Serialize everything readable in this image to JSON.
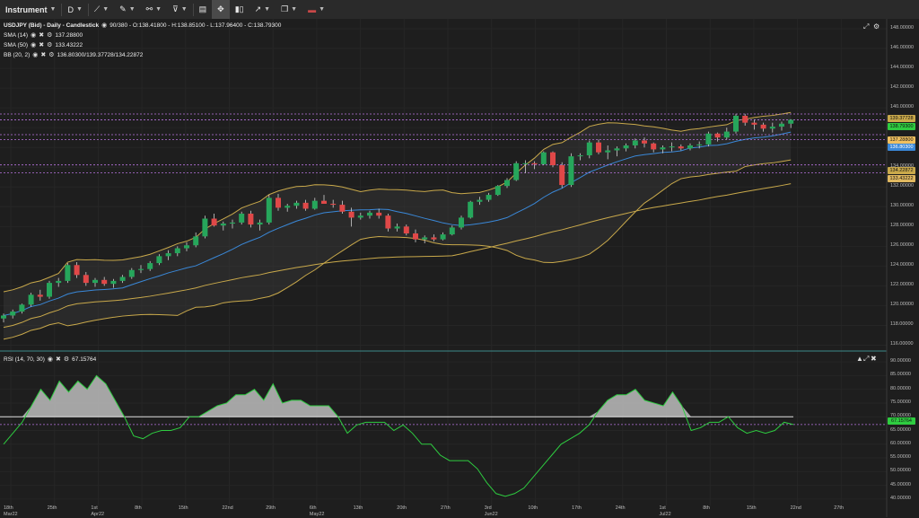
{
  "toolbar": {
    "instrument_label": "Instrument",
    "timeframe_label": "D",
    "items": [
      {
        "name": "drawing-tools-icon"
      },
      {
        "name": "pencil-icon"
      },
      {
        "name": "indicators-icon"
      },
      {
        "name": "template-icon"
      },
      {
        "name": "layout-icon"
      },
      {
        "name": "crosshair-icon"
      },
      {
        "name": "chart-type-icon"
      },
      {
        "name": "share-icon"
      },
      {
        "name": "window-icon"
      },
      {
        "name": "language-flag-icon"
      }
    ]
  },
  "legend": {
    "instrument": "USDJPY (Bid) - Daily - Candlestick",
    "ohlc": "90/380 - O:138.41800 - H:138.85100 - L:137.96400 - C:138.79300",
    "sma14_label": "SMA (14)",
    "sma14_value": "137.28800",
    "sma50_label": "SMA (50)",
    "sma50_value": "133.43222",
    "bb_label": "BB (20, 2)",
    "bb_value": "136.80300/139.37728/134.22872",
    "rsi_label": "RSI (14, 70, 30)",
    "rsi_value": "67.15764"
  },
  "colors": {
    "bg": "#1e1e1e",
    "up": "#26a65b",
    "down": "#e04848",
    "bb": "#c9a94b",
    "sma14": "#f0c060",
    "sma50": "#3a88d8",
    "rsi": "#2ecc40",
    "level": "#b873e0"
  },
  "price_axis": [
    "148.00000",
    "146.00000",
    "144.00000",
    "142.00000",
    "140.00000",
    "138.00000",
    "136.00000",
    "134.00000",
    "132.00000",
    "130.00000",
    "128.00000",
    "126.00000",
    "124.00000",
    "122.00000",
    "120.00000",
    "118.00000",
    "116.00000"
  ],
  "price_tags": {
    "bb_upper": "139.37728",
    "close": "138.79300",
    "sma14": "137.28800",
    "bb_mid": "136.80300",
    "bb_lower": "134.22872",
    "sma50": "133.43222"
  },
  "rsi_axis": [
    "90.00000",
    "85.00000",
    "80.00000",
    "75.00000",
    "70.00000",
    "65.00000",
    "60.00000",
    "55.00000",
    "50.00000",
    "45.00000",
    "40.00000"
  ],
  "rsi_tag": "67.15764",
  "time_axis": [
    {
      "l1": "18th",
      "l2": "Mar22"
    },
    {
      "l1": "25th",
      "l2": ""
    },
    {
      "l1": "1st",
      "l2": "Apr22"
    },
    {
      "l1": "8th",
      "l2": ""
    },
    {
      "l1": "15th",
      "l2": ""
    },
    {
      "l1": "22nd",
      "l2": ""
    },
    {
      "l1": "29th",
      "l2": ""
    },
    {
      "l1": "6th",
      "l2": "May22"
    },
    {
      "l1": "13th",
      "l2": ""
    },
    {
      "l1": "20th",
      "l2": ""
    },
    {
      "l1": "27th",
      "l2": ""
    },
    {
      "l1": "3rd",
      "l2": "Jun22"
    },
    {
      "l1": "10th",
      "l2": ""
    },
    {
      "l1": "17th",
      "l2": ""
    },
    {
      "l1": "24th",
      "l2": ""
    },
    {
      "l1": "1st",
      "l2": "Jul22"
    },
    {
      "l1": "8th",
      "l2": ""
    },
    {
      "l1": "15th",
      "l2": ""
    },
    {
      "l1": "22nd",
      "l2": ""
    },
    {
      "l1": "27th",
      "l2": ""
    }
  ],
  "chart_data": {
    "type": "candlestick",
    "ylim": [
      115.5,
      149
    ],
    "candles": [
      [
        118.7,
        119.2,
        118.3,
        119.0
      ],
      [
        119.0,
        119.6,
        118.7,
        119.4
      ],
      [
        119.4,
        120.2,
        119.2,
        120.1
      ],
      [
        120.1,
        121.3,
        119.9,
        121.1
      ],
      [
        121.1,
        121.6,
        120.5,
        120.9
      ],
      [
        120.9,
        122.5,
        120.7,
        122.3
      ],
      [
        122.3,
        122.8,
        121.9,
        122.5
      ],
      [
        122.5,
        124.3,
        122.3,
        124.1
      ],
      [
        124.1,
        124.4,
        122.8,
        123.1
      ],
      [
        123.1,
        123.4,
        122.0,
        122.3
      ],
      [
        122.3,
        122.8,
        121.9,
        122.6
      ],
      [
        122.6,
        122.9,
        122.0,
        122.2
      ],
      [
        122.2,
        122.7,
        121.8,
        122.5
      ],
      [
        122.5,
        123.1,
        122.3,
        122.9
      ],
      [
        122.9,
        123.8,
        122.7,
        123.6
      ],
      [
        123.6,
        124.1,
        123.3,
        123.7
      ],
      [
        123.7,
        124.5,
        123.5,
        124.3
      ],
      [
        124.3,
        125.2,
        124.1,
        125.0
      ],
      [
        125.0,
        125.6,
        124.6,
        125.3
      ],
      [
        125.3,
        126.0,
        125.0,
        125.8
      ],
      [
        125.8,
        126.4,
        125.5,
        126.1
      ],
      [
        126.1,
        127.4,
        125.9,
        127.0
      ],
      [
        127.0,
        129.1,
        126.8,
        128.8
      ],
      [
        128.8,
        129.3,
        128.0,
        128.1
      ],
      [
        128.1,
        128.5,
        127.6,
        128.3
      ],
      [
        128.3,
        128.7,
        127.8,
        128.4
      ],
      [
        128.4,
        129.5,
        128.2,
        129.3
      ],
      [
        129.3,
        129.6,
        127.9,
        128.2
      ],
      [
        128.2,
        128.7,
        127.6,
        128.4
      ],
      [
        128.4,
        131.2,
        128.2,
        130.9
      ],
      [
        130.9,
        131.3,
        129.6,
        129.9
      ],
      [
        129.9,
        130.3,
        129.5,
        130.1
      ],
      [
        130.1,
        130.6,
        129.8,
        130.4
      ],
      [
        130.4,
        130.7,
        129.6,
        129.8
      ],
      [
        129.8,
        130.9,
        129.7,
        130.6
      ],
      [
        130.6,
        131.2,
        130.3,
        130.3
      ],
      [
        130.3,
        130.7,
        129.9,
        130.2
      ],
      [
        130.2,
        130.6,
        129.3,
        129.5
      ],
      [
        129.5,
        129.9,
        128.0,
        128.9
      ],
      [
        128.9,
        129.4,
        128.7,
        129.1
      ],
      [
        129.1,
        129.6,
        128.8,
        129.4
      ],
      [
        129.4,
        129.8,
        128.8,
        129.1
      ],
      [
        129.1,
        129.3,
        127.5,
        127.8
      ],
      [
        127.8,
        128.3,
        127.5,
        128.0
      ],
      [
        128.0,
        128.2,
        127.1,
        127.3
      ],
      [
        127.3,
        127.7,
        126.4,
        126.7
      ],
      [
        126.7,
        127.1,
        126.3,
        126.9
      ],
      [
        126.9,
        127.2,
        126.5,
        126.7
      ],
      [
        126.7,
        127.4,
        126.6,
        127.2
      ],
      [
        127.2,
        128.1,
        127.1,
        127.9
      ],
      [
        127.9,
        129.1,
        127.7,
        128.9
      ],
      [
        128.9,
        130.6,
        128.8,
        130.5
      ],
      [
        130.5,
        131.0,
        130.2,
        130.7
      ],
      [
        130.7,
        131.4,
        130.5,
        131.2
      ],
      [
        131.2,
        132.2,
        131.1,
        132.1
      ],
      [
        132.1,
        132.9,
        131.9,
        132.7
      ],
      [
        132.7,
        134.6,
        132.6,
        134.4
      ],
      [
        134.4,
        134.7,
        133.4,
        134.4
      ],
      [
        134.4,
        134.6,
        133.8,
        134.3
      ],
      [
        134.3,
        135.6,
        134.2,
        135.5
      ],
      [
        135.5,
        135.6,
        134.0,
        134.2
      ],
      [
        134.2,
        134.5,
        131.9,
        132.2
      ],
      [
        132.2,
        135.4,
        132.0,
        135.1
      ],
      [
        135.1,
        135.4,
        134.7,
        135.2
      ],
      [
        135.2,
        136.7,
        134.9,
        136.5
      ],
      [
        136.5,
        136.8,
        135.3,
        135.5
      ],
      [
        135.5,
        136.2,
        134.8,
        135.7
      ],
      [
        135.7,
        136.1,
        135.1,
        135.9
      ],
      [
        135.9,
        136.4,
        135.6,
        136.2
      ],
      [
        136.2,
        136.9,
        135.9,
        136.7
      ],
      [
        136.7,
        137.0,
        136.0,
        136.4
      ],
      [
        136.4,
        136.5,
        135.5,
        135.8
      ],
      [
        135.8,
        136.2,
        135.4,
        136.0
      ],
      [
        136.0,
        136.5,
        135.6,
        136.1
      ],
      [
        136.1,
        136.3,
        135.7,
        135.9
      ],
      [
        135.9,
        136.4,
        135.7,
        136.2
      ],
      [
        136.2,
        136.6,
        135.9,
        136.3
      ],
      [
        136.3,
        137.6,
        136.1,
        137.4
      ],
      [
        137.4,
        137.5,
        136.6,
        137.0
      ],
      [
        137.0,
        138.0,
        136.8,
        137.6
      ],
      [
        137.6,
        139.4,
        137.4,
        139.2
      ],
      [
        139.2,
        139.4,
        138.2,
        138.5
      ],
      [
        138.5,
        138.8,
        137.8,
        138.3
      ],
      [
        138.3,
        138.5,
        137.6,
        137.9
      ],
      [
        137.9,
        138.5,
        137.5,
        138.1
      ],
      [
        138.1,
        138.6,
        137.7,
        138.4
      ],
      [
        138.4,
        138.85,
        137.96,
        138.79
      ]
    ],
    "rsi": [
      60,
      64,
      68,
      74,
      80,
      76,
      83,
      79,
      83,
      80,
      85,
      82,
      76,
      70,
      63,
      62,
      64,
      65,
      65,
      66,
      70,
      70,
      72,
      74,
      75,
      78,
      78,
      80,
      76,
      82,
      75,
      76,
      76,
      74,
      74,
      74,
      70,
      64,
      67,
      68,
      68,
      68,
      65,
      67,
      64,
      60,
      60,
      56,
      54,
      54,
      54,
      51,
      46,
      42,
      41,
      42,
      44,
      48,
      52,
      56,
      60,
      62,
      64,
      67,
      72,
      76,
      78,
      78,
      80,
      76,
      75,
      74,
      79,
      74,
      65,
      66,
      68,
      68,
      70,
      66,
      64,
      65,
      64,
      65,
      68,
      67.16
    ],
    "bb_upper": "139.37728",
    "bb_middle": "136.80300",
    "bb_lower": "134.22872",
    "sma14": "137.28800",
    "sma50": "133.43222"
  }
}
